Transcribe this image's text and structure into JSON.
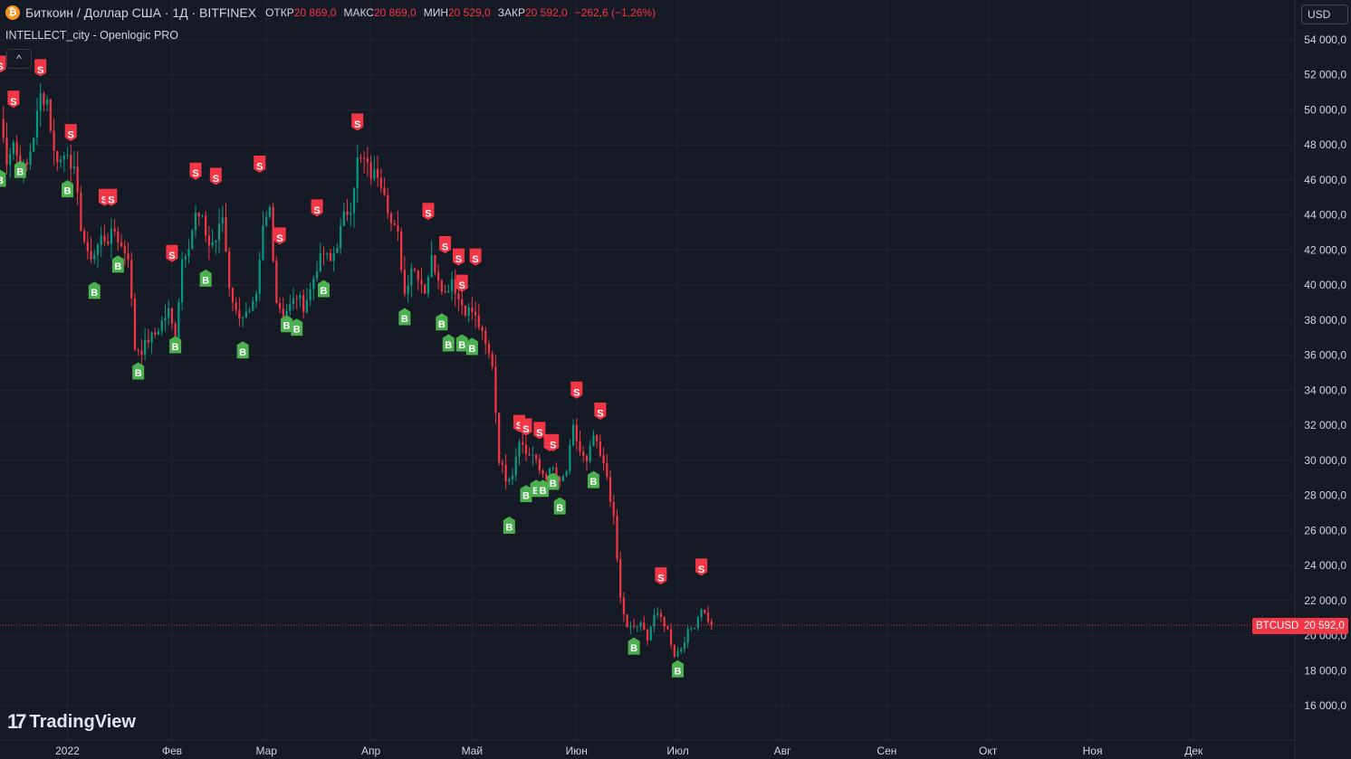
{
  "header": {
    "symbol": "Биткоин / Доллар США · 1Д · BITFINEX",
    "open_label": "ОТКР",
    "open_value": "20 869,0",
    "high_label": "МАКС",
    "high_value": "20 869,0",
    "low_label": "МИН",
    "low_value": "20 529,0",
    "close_label": "ЗАКР",
    "close_value": "20 592,0",
    "change": "−262,6 (−1,26%)",
    "coin_glyph": "₿"
  },
  "indicator": {
    "name": "INTELLECT_city - Openlogic PRO"
  },
  "toolbar": {
    "currency": "USD",
    "collapse_icon": "^"
  },
  "branding": {
    "name": "TradingView",
    "mark": "17"
  },
  "last_price": {
    "symbol": "BTCUSD",
    "value": "20 592,0"
  },
  "colors": {
    "background": "#161a25",
    "grid": "#232632",
    "up": "#089981",
    "down": "#f23645",
    "buy_marker": "#4caf50",
    "sell_marker": "#f23645",
    "text": "#d1d4dc"
  },
  "chart_data": {
    "type": "candlestick",
    "timeframe": "1D",
    "ylim": [
      15000,
      55500
    ],
    "y_ticks": [
      {
        "value": 54000,
        "label": "54 000,0"
      },
      {
        "value": 52000,
        "label": "52 000,0"
      },
      {
        "value": 50000,
        "label": "50 000,0"
      },
      {
        "value": 48000,
        "label": "48 000,0"
      },
      {
        "value": 46000,
        "label": "46 000,0"
      },
      {
        "value": 44000,
        "label": "44 000,0"
      },
      {
        "value": 42000,
        "label": "42 000,0"
      },
      {
        "value": 40000,
        "label": "40 000,0"
      },
      {
        "value": 38000,
        "label": "38 000,0"
      },
      {
        "value": 36000,
        "label": "36 000,0"
      },
      {
        "value": 34000,
        "label": "34 000,0"
      },
      {
        "value": 32000,
        "label": "32 000,0"
      },
      {
        "value": 30000,
        "label": "30 000,0"
      },
      {
        "value": 28000,
        "label": "28 000,0"
      },
      {
        "value": 26000,
        "label": "26 000,0"
      },
      {
        "value": 24000,
        "label": "24 000,0"
      },
      {
        "value": 22000,
        "label": "22 000,0"
      },
      {
        "value": 20000,
        "label": "20 000,0"
      },
      {
        "value": 18000,
        "label": "18 000,0"
      },
      {
        "value": 16000,
        "label": "16 000,0"
      }
    ],
    "x_ticks": [
      {
        "date": "2022-01-01",
        "label": "2022"
      },
      {
        "date": "2022-02-01",
        "label": "Фев"
      },
      {
        "date": "2022-03-01",
        "label": "Мар"
      },
      {
        "date": "2022-04-01",
        "label": "Апр"
      },
      {
        "date": "2022-05-01",
        "label": "Май"
      },
      {
        "date": "2022-06-01",
        "label": "Июн"
      },
      {
        "date": "2022-07-01",
        "label": "Июл"
      },
      {
        "date": "2022-08-01",
        "label": "Авг"
      },
      {
        "date": "2022-09-01",
        "label": "Сен"
      },
      {
        "date": "2022-10-01",
        "label": "Окт"
      },
      {
        "date": "2022-11-01",
        "label": "Ноя"
      },
      {
        "date": "2022-12-01",
        "label": "Дек"
      }
    ],
    "x_range": [
      "2021-12-12",
      "2022-12-31"
    ],
    "last_close": 20592,
    "close_series": [
      [
        "2021-12-12",
        49500
      ],
      [
        "2021-12-14",
        47200
      ],
      [
        "2021-12-16",
        48200
      ],
      [
        "2021-12-18",
        46600
      ],
      [
        "2021-12-20",
        46800
      ],
      [
        "2021-12-22",
        48600
      ],
      [
        "2021-12-24",
        50800
      ],
      [
        "2021-12-26",
        50600
      ],
      [
        "2021-12-28",
        47500
      ],
      [
        "2021-12-30",
        47100
      ],
      [
        "2022-01-01",
        47700
      ],
      [
        "2022-01-03",
        46400
      ],
      [
        "2022-01-05",
        43400
      ],
      [
        "2022-01-07",
        41600
      ],
      [
        "2022-01-09",
        41800
      ],
      [
        "2022-01-11",
        42700
      ],
      [
        "2022-01-13",
        42600
      ],
      [
        "2022-01-15",
        43100
      ],
      [
        "2022-01-17",
        42200
      ],
      [
        "2022-01-19",
        41700
      ],
      [
        "2022-01-21",
        36400
      ],
      [
        "2022-01-23",
        36300
      ],
      [
        "2022-01-25",
        36900
      ],
      [
        "2022-01-27",
        37200
      ],
      [
        "2022-01-29",
        37900
      ],
      [
        "2022-01-31",
        38500
      ],
      [
        "2022-02-02",
        36900
      ],
      [
        "2022-02-04",
        41500
      ],
      [
        "2022-02-06",
        42400
      ],
      [
        "2022-02-08",
        44000
      ],
      [
        "2022-02-10",
        43600
      ],
      [
        "2022-02-12",
        42300
      ],
      [
        "2022-02-14",
        42600
      ],
      [
        "2022-02-16",
        43900
      ],
      [
        "2022-02-18",
        40000
      ],
      [
        "2022-02-20",
        38400
      ],
      [
        "2022-02-22",
        38300
      ],
      [
        "2022-02-24",
        38300
      ],
      [
        "2022-02-26",
        39200
      ],
      [
        "2022-02-28",
        43200
      ],
      [
        "2022-03-02",
        44400
      ],
      [
        "2022-03-04",
        39100
      ],
      [
        "2022-03-06",
        38400
      ],
      [
        "2022-03-08",
        38800
      ],
      [
        "2022-03-10",
        39400
      ],
      [
        "2022-03-12",
        38800
      ],
      [
        "2022-03-14",
        39700
      ],
      [
        "2022-03-16",
        41100
      ],
      [
        "2022-03-18",
        41800
      ],
      [
        "2022-03-20",
        41300
      ],
      [
        "2022-03-22",
        42400
      ],
      [
        "2022-03-24",
        43900
      ],
      [
        "2022-03-26",
        44500
      ],
      [
        "2022-03-28",
        47100
      ],
      [
        "2022-03-30",
        47100
      ],
      [
        "2022-04-01",
        46300
      ],
      [
        "2022-04-03",
        46400
      ],
      [
        "2022-04-05",
        45500
      ],
      [
        "2022-04-07",
        43500
      ],
      [
        "2022-04-09",
        42800
      ],
      [
        "2022-04-11",
        39500
      ],
      [
        "2022-04-13",
        41100
      ],
      [
        "2022-04-15",
        40600
      ],
      [
        "2022-04-17",
        39700
      ],
      [
        "2022-04-19",
        41500
      ],
      [
        "2022-04-21",
        40500
      ],
      [
        "2022-04-23",
        39500
      ],
      [
        "2022-04-25",
        40400
      ],
      [
        "2022-04-27",
        39200
      ],
      [
        "2022-04-29",
        38600
      ],
      [
        "2022-05-01",
        38500
      ],
      [
        "2022-05-03",
        37700
      ],
      [
        "2022-05-05",
        36500
      ],
      [
        "2022-05-07",
        35500
      ],
      [
        "2022-05-09",
        30100
      ],
      [
        "2022-05-11",
        29000
      ],
      [
        "2022-05-13",
        29300
      ],
      [
        "2022-05-15",
        31300
      ],
      [
        "2022-05-17",
        30400
      ],
      [
        "2022-05-19",
        30300
      ],
      [
        "2022-05-21",
        29400
      ],
      [
        "2022-05-23",
        29100
      ],
      [
        "2022-05-25",
        29500
      ],
      [
        "2022-05-27",
        28600
      ],
      [
        "2022-05-29",
        29400
      ],
      [
        "2022-05-31",
        31800
      ],
      [
        "2022-06-02",
        30500
      ],
      [
        "2022-06-04",
        29800
      ],
      [
        "2022-06-06",
        31400
      ],
      [
        "2022-06-08",
        30200
      ],
      [
        "2022-06-10",
        29100
      ],
      [
        "2022-06-12",
        26600
      ],
      [
        "2022-06-14",
        22100
      ],
      [
        "2022-06-16",
        20400
      ],
      [
        "2022-06-18",
        20500
      ],
      [
        "2022-06-20",
        20600
      ],
      [
        "2022-06-22",
        19900
      ],
      [
        "2022-06-24",
        21200
      ],
      [
        "2022-06-26",
        21000
      ],
      [
        "2022-06-28",
        20300
      ],
      [
        "2022-06-30",
        18900
      ],
      [
        "2022-07-02",
        19300
      ],
      [
        "2022-07-04",
        20200
      ],
      [
        "2022-07-06",
        20600
      ],
      [
        "2022-07-08",
        21600
      ],
      [
        "2022-07-10",
        20900
      ],
      [
        "2022-07-11",
        20592
      ]
    ],
    "signals": [
      {
        "date": "2021-12-12",
        "type": "sell",
        "label": "S",
        "price": 52500
      },
      {
        "date": "2021-12-16",
        "type": "sell",
        "label": "S",
        "price": 50500
      },
      {
        "date": "2021-12-12",
        "type": "buy",
        "label": "B",
        "price": 46000
      },
      {
        "date": "2021-12-18",
        "type": "buy",
        "label": "B",
        "price": 46500
      },
      {
        "date": "2021-12-24",
        "type": "sell",
        "label": "S",
        "price": 52300
      },
      {
        "date": "2022-01-02",
        "type": "sell",
        "label": "S",
        "price": 48600
      },
      {
        "date": "2022-01-01",
        "type": "buy",
        "label": "B",
        "price": 45400
      },
      {
        "date": "2022-01-09",
        "type": "buy",
        "label": "B",
        "price": 39600
      },
      {
        "date": "2022-01-12",
        "type": "sell",
        "label": "S",
        "price": 44900
      },
      {
        "date": "2022-01-14",
        "type": "sell",
        "label": "S",
        "price": 44900
      },
      {
        "date": "2022-01-16",
        "type": "buy",
        "label": "B",
        "price": 41100
      },
      {
        "date": "2022-01-22",
        "type": "buy",
        "label": "B",
        "price": 35000
      },
      {
        "date": "2022-02-02",
        "type": "buy",
        "label": "B",
        "price": 36500
      },
      {
        "date": "2022-02-01",
        "type": "sell",
        "label": "S",
        "price": 41700
      },
      {
        "date": "2022-02-08",
        "type": "sell",
        "label": "S",
        "price": 46400
      },
      {
        "date": "2022-02-11",
        "type": "buy",
        "label": "B",
        "price": 40300
      },
      {
        "date": "2022-02-14",
        "type": "sell",
        "label": "S",
        "price": 46100
      },
      {
        "date": "2022-02-22",
        "type": "buy",
        "label": "B",
        "price": 36200
      },
      {
        "date": "2022-02-27",
        "type": "sell",
        "label": "S",
        "price": 46800
      },
      {
        "date": "2022-03-07",
        "type": "buy",
        "label": "B",
        "price": 37700
      },
      {
        "date": "2022-03-05",
        "type": "sell",
        "label": "S",
        "price": 42700
      },
      {
        "date": "2022-03-10",
        "type": "buy",
        "label": "B",
        "price": 37500
      },
      {
        "date": "2022-03-16",
        "type": "sell",
        "label": "S",
        "price": 44300
      },
      {
        "date": "2022-03-18",
        "type": "buy",
        "label": "B",
        "price": 39700
      },
      {
        "date": "2022-03-28",
        "type": "sell",
        "label": "S",
        "price": 49200
      },
      {
        "date": "2022-04-11",
        "type": "buy",
        "label": "B",
        "price": 38100
      },
      {
        "date": "2022-04-18",
        "type": "sell",
        "label": "S",
        "price": 44100
      },
      {
        "date": "2022-04-22",
        "type": "buy",
        "label": "B",
        "price": 37800
      },
      {
        "date": "2022-04-23",
        "type": "sell",
        "label": "S",
        "price": 42200
      },
      {
        "date": "2022-04-24",
        "type": "buy",
        "label": "B",
        "price": 36600
      },
      {
        "date": "2022-04-27",
        "type": "sell",
        "label": "S",
        "price": 41500
      },
      {
        "date": "2022-04-28",
        "type": "buy",
        "label": "B",
        "price": 36600
      },
      {
        "date": "2022-04-28",
        "type": "sell",
        "label": "S",
        "price": 40000
      },
      {
        "date": "2022-05-01",
        "type": "buy",
        "label": "B",
        "price": 36400
      },
      {
        "date": "2022-05-02",
        "type": "sell",
        "label": "S",
        "price": 41500
      },
      {
        "date": "2022-05-12",
        "type": "buy",
        "label": "B",
        "price": 26200
      },
      {
        "date": "2022-05-15",
        "type": "sell",
        "label": "S",
        "price": 32000
      },
      {
        "date": "2022-05-17",
        "type": "buy",
        "label": "B",
        "price": 28000
      },
      {
        "date": "2022-05-17",
        "type": "sell",
        "label": "S",
        "price": 31800
      },
      {
        "date": "2022-05-20",
        "type": "buy",
        "label": "B",
        "price": 28300
      },
      {
        "date": "2022-05-21",
        "type": "sell",
        "label": "S",
        "price": 31600
      },
      {
        "date": "2022-05-22",
        "type": "buy",
        "label": "B",
        "price": 28300
      },
      {
        "date": "2022-05-24",
        "type": "sell",
        "label": "S",
        "price": 30900
      },
      {
        "date": "2022-05-25",
        "type": "sell",
        "label": "S",
        "price": 30900
      },
      {
        "date": "2022-05-25",
        "type": "buy",
        "label": "B",
        "price": 28700
      },
      {
        "date": "2022-05-27",
        "type": "buy",
        "label": "B",
        "price": 27300
      },
      {
        "date": "2022-06-01",
        "type": "sell",
        "label": "S",
        "price": 33900
      },
      {
        "date": "2022-06-06",
        "type": "buy",
        "label": "B",
        "price": 28800
      },
      {
        "date": "2022-06-08",
        "type": "sell",
        "label": "S",
        "price": 32700
      },
      {
        "date": "2022-06-18",
        "type": "buy",
        "label": "B",
        "price": 19300
      },
      {
        "date": "2022-06-26",
        "type": "sell",
        "label": "S",
        "price": 23300
      },
      {
        "date": "2022-07-01",
        "type": "buy",
        "label": "B",
        "price": 18000
      },
      {
        "date": "2022-07-08",
        "type": "sell",
        "label": "S",
        "price": 23800
      }
    ]
  }
}
